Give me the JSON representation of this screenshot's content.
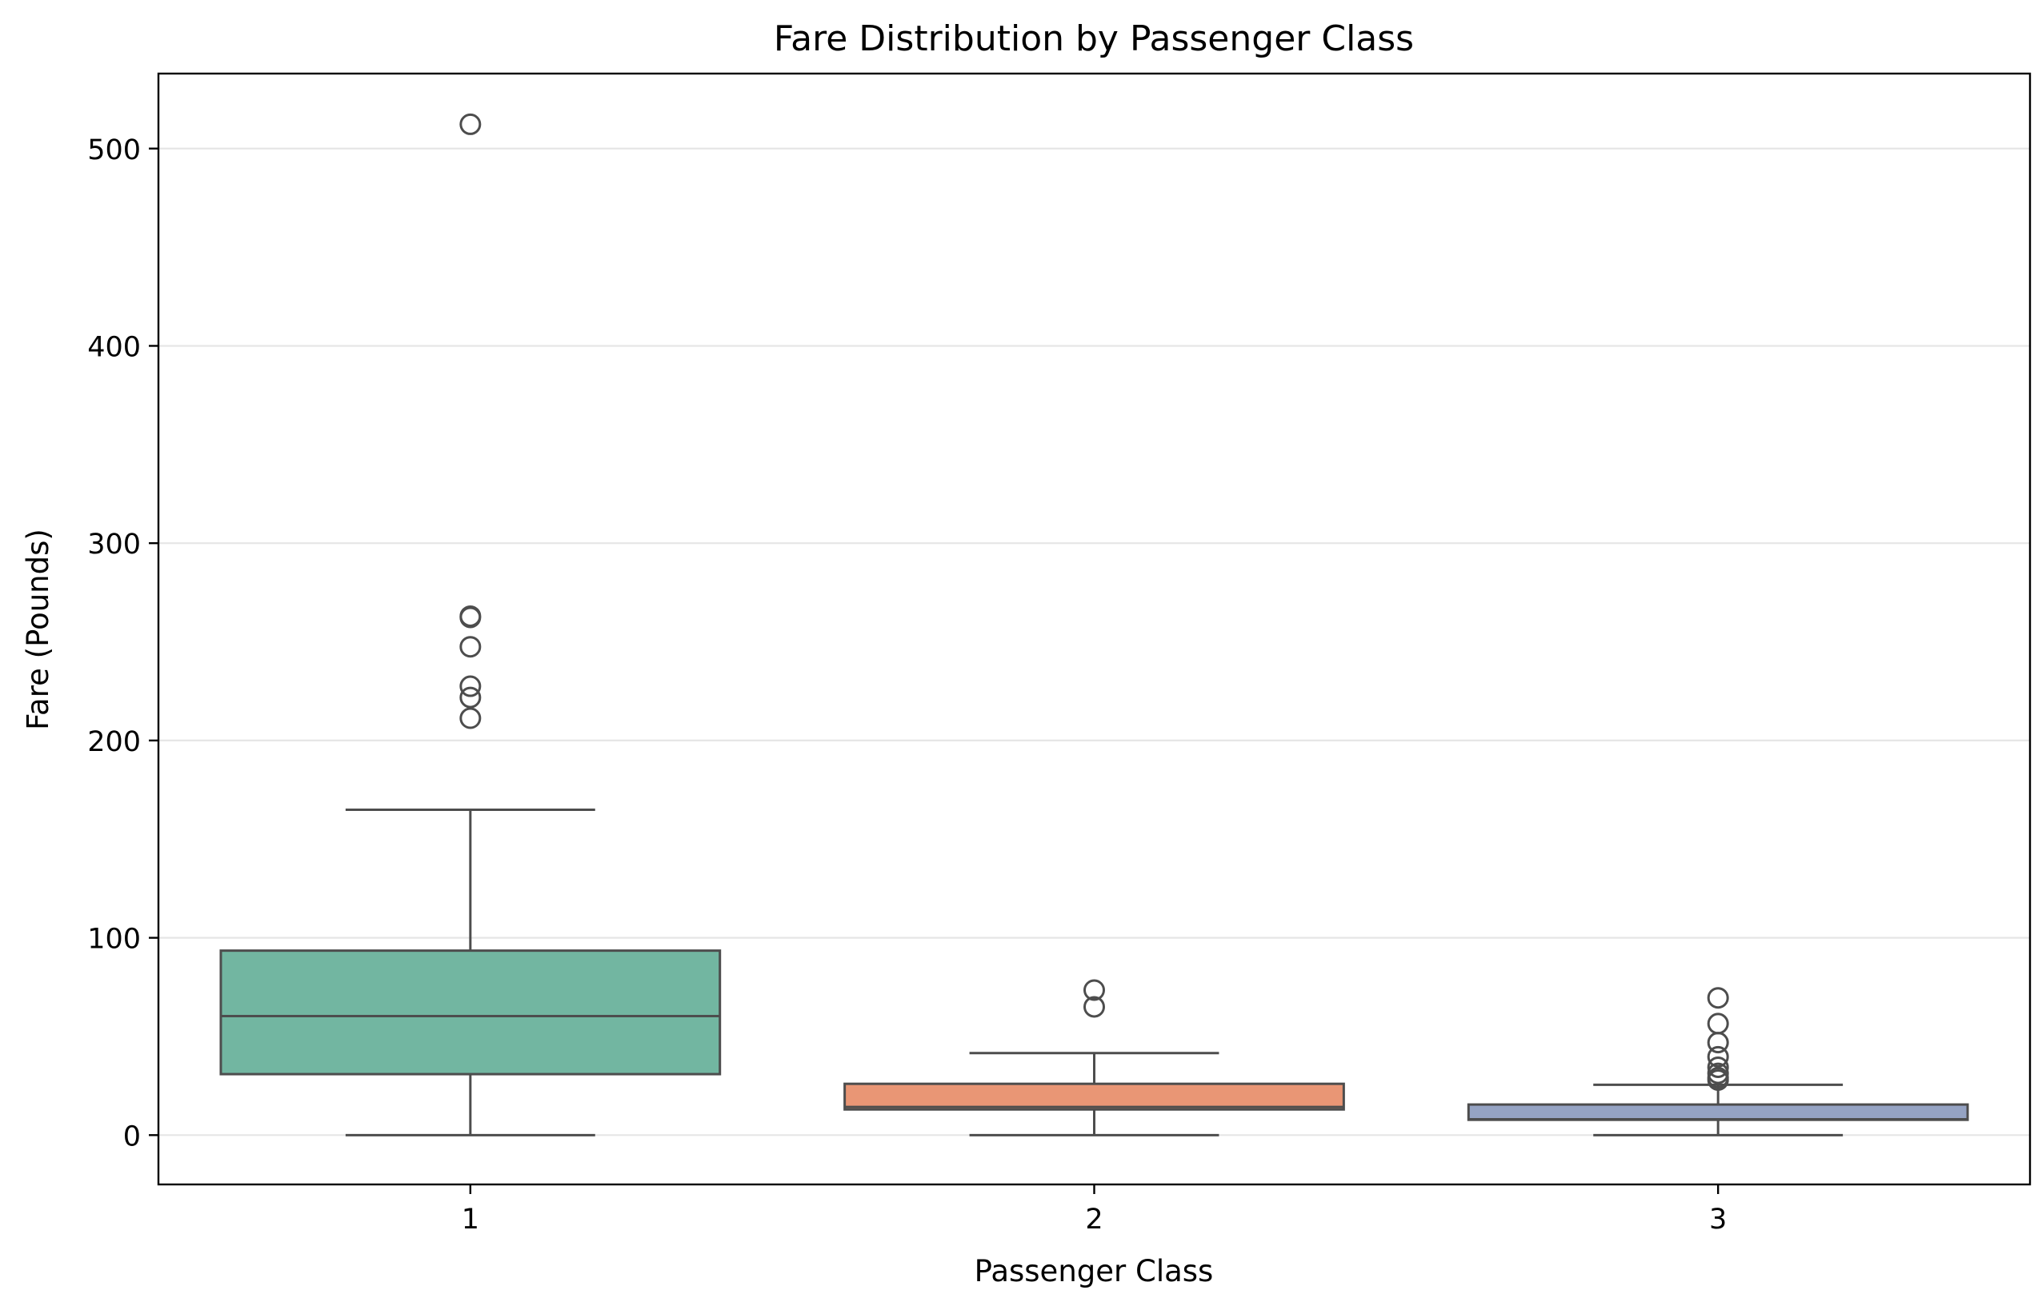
{
  "chart_data": {
    "type": "box",
    "title": "Fare Distribution by Passenger Class",
    "xlabel": "Passenger Class",
    "ylabel": "Fare (Pounds)",
    "ylim": [
      -25,
      538
    ],
    "yticks": [
      0,
      100,
      200,
      300,
      400,
      500
    ],
    "categories": [
      "1",
      "2",
      "3"
    ],
    "grid": "y",
    "legend": "none",
    "boxes": [
      {
        "category": "1",
        "color": "#72B6A1",
        "whisker_low": 0,
        "q1": 30.9,
        "median": 60.3,
        "q3": 93.5,
        "whisker_high": 164.9,
        "outliers": [
          211.3,
          221.8,
          227.5,
          247.5,
          262.4,
          263.0,
          512.3
        ]
      },
      {
        "category": "2",
        "color": "#E99675",
        "whisker_low": 0,
        "q1": 13.0,
        "median": 14.25,
        "q3": 26.0,
        "whisker_high": 41.6,
        "outliers": [
          65.0,
          73.5
        ]
      },
      {
        "category": "3",
        "color": "#95A3C3",
        "whisker_low": 0,
        "q1": 7.75,
        "median": 8.05,
        "q3": 15.5,
        "whisker_high": 25.5,
        "outliers": [
          27.9,
          29.1,
          31.3,
          34.4,
          39.7,
          46.9,
          56.5,
          69.55
        ]
      }
    ]
  }
}
